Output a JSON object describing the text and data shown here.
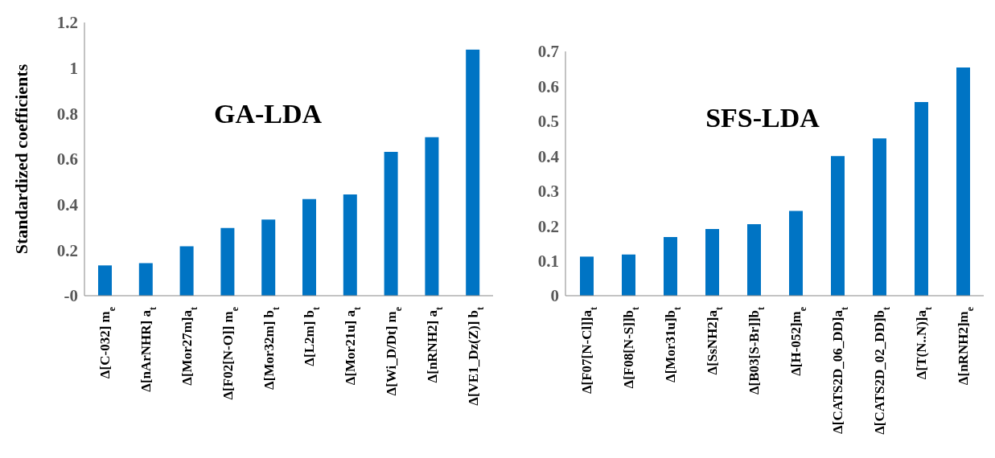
{
  "chart_data": [
    {
      "type": "bar",
      "title": "GA-LDA",
      "ylabel": "Standardized coefficients",
      "categories": [
        "Δ[C-032] m$_{e}$",
        "Δ[nArNHR] a$_{t}$",
        "Δ[Mor27m]a$_{t}$",
        "Δ[F02[N-O]] m$_{e}$",
        "Δ[Mor32m] b$_{t}$",
        "Δ[L2m] b$_{t}$",
        "Δ[Mor21u] a$_{t}$",
        "Δ[Wi_D/Dt] m$_{e}$",
        "Δ[nRNH2] a$_{t}$",
        "Δ[VE1_Dz(Z)] b$_{t}$"
      ],
      "values": [
        0.133,
        0.143,
        0.217,
        0.297,
        0.334,
        0.424,
        0.445,
        0.632,
        0.696,
        1.081
      ],
      "color": "#0074c4",
      "ylim": [
        0,
        1.2
      ],
      "yticks": [
        {
          "value": 0,
          "label": "-0"
        },
        0.2,
        0.4,
        0.6,
        0.8,
        1,
        1.2
      ],
      "grid": false,
      "legend": false
    },
    {
      "type": "bar",
      "title": "SFS-LDA",
      "categories": [
        "Δ[F07[N-Cl]]a$_{t}$",
        "Δ[F08[N-S]]b$_{t}$",
        "Δ[Mor31u]b$_{t}$",
        "Δ[SsNH2]a$_{t}$",
        "Δ[B03[S-Br]]b$_{t}$",
        "Δ[H-052]m$_{e}$",
        "Δ[CATS2D_06_DD]a$_{t}$",
        "Δ[CATS2D_02_DD]b$_{t}$",
        "Δ[T(N..N)]a$_{t}$",
        "Δ[nRNH2]m$_{e}$"
      ],
      "values": [
        0.112,
        0.118,
        0.168,
        0.191,
        0.205,
        0.243,
        0.4,
        0.451,
        0.555,
        0.654
      ],
      "color": "#0074c4",
      "ylim": [
        0,
        0.7
      ],
      "yticks": [
        0,
        0.1,
        0.2,
        0.3,
        0.4,
        0.5,
        0.6,
        0.7
      ],
      "grid": false,
      "legend": false
    }
  ]
}
